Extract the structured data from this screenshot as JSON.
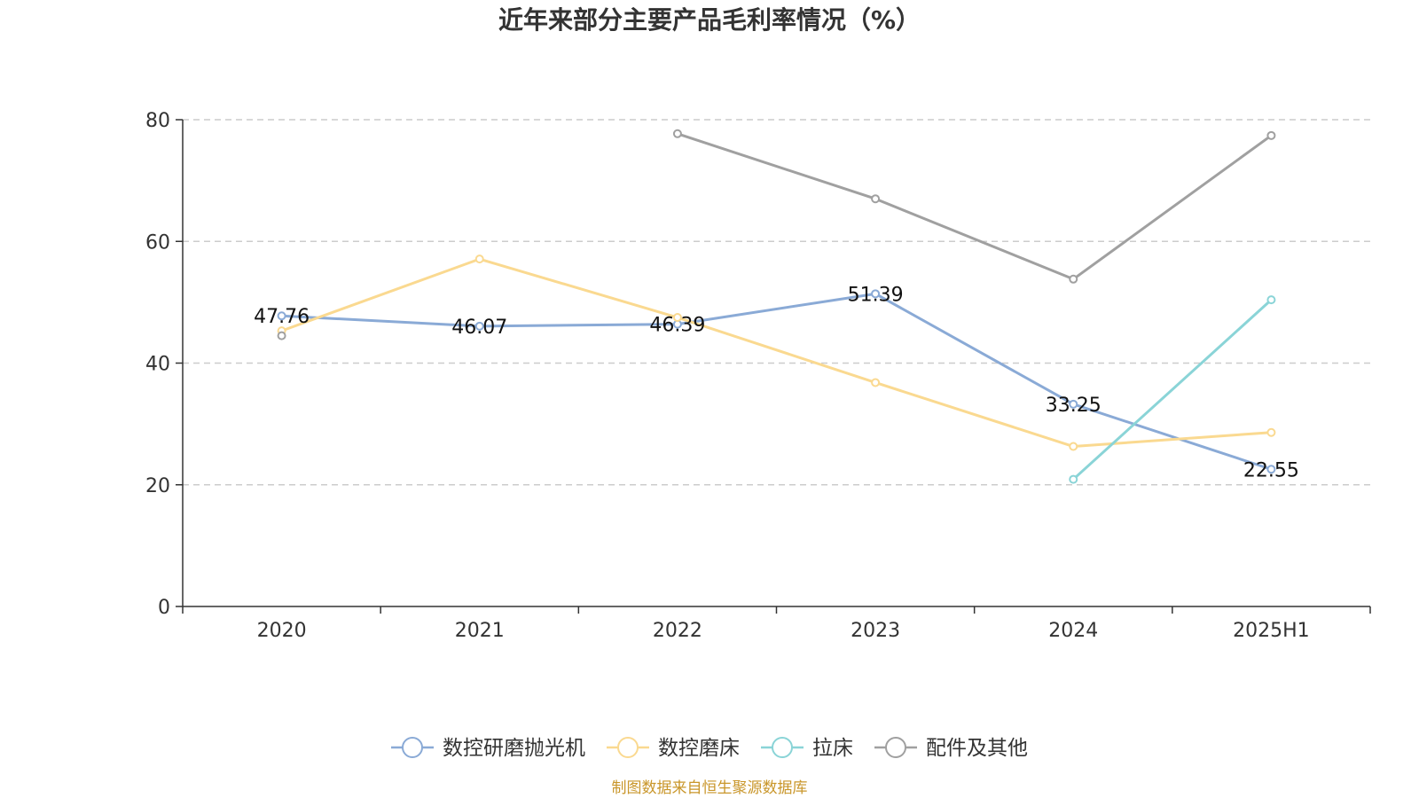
{
  "chart_data": {
    "type": "line",
    "title": "近年来部分主要产品毛利率情况（%）",
    "xlabel": "",
    "ylabel": "",
    "categories": [
      "2020",
      "2021",
      "2022",
      "2023",
      "2024",
      "2025H1"
    ],
    "ylim": [
      0,
      80
    ],
    "yticks": [
      0,
      20,
      40,
      60,
      80
    ],
    "grid": true,
    "legend_position": "bottom",
    "series": [
      {
        "name": "数控研磨抛光机",
        "color": "#8aaad6",
        "values": [
          47.76,
          46.07,
          46.39,
          51.39,
          33.25,
          22.55
        ],
        "labels": [
          "47.76",
          "46.07",
          "46.39",
          "51.39",
          "33.25",
          "22.55"
        ]
      },
      {
        "name": "数控磨床",
        "color": "#fad990",
        "values": [
          45.3,
          57.1,
          47.5,
          36.8,
          26.3,
          28.6
        ],
        "labels": []
      },
      {
        "name": "拉床",
        "color": "#8ad4d7",
        "values": [
          null,
          null,
          null,
          null,
          20.9,
          50.4
        ],
        "labels": []
      },
      {
        "name": "配件及其他",
        "color": "#a0a0a0",
        "values": [
          44.5,
          null,
          77.7,
          67.0,
          53.8,
          77.4
        ],
        "labels": []
      }
    ]
  },
  "source": "制图数据来自恒生聚源数据库"
}
